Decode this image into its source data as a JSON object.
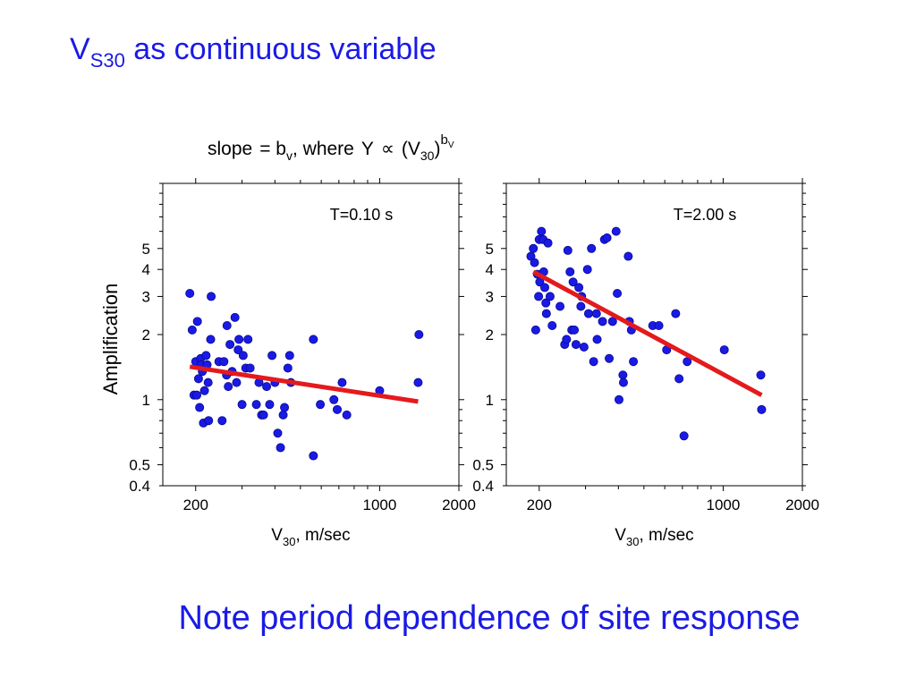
{
  "slide": {
    "title_main": "V",
    "title_sub": "S30",
    "title_rest": " as continuous variable",
    "caption": "Note period dependence of site response",
    "accent_color": "#1a1ae6"
  },
  "figure": {
    "slope_label": "slope",
    "equals": "= b",
    "b_sub": "v",
    "where": ", where",
    "Y": "Y",
    "propto": "∝",
    "V_open": "(V",
    "V_sub": "30",
    "close": ")",
    "exp_b": "b",
    "exp_sub": "V",
    "point_color": "#1a1ae6",
    "fit_color": "#e41a1c"
  },
  "chart_data": [
    {
      "type": "scatter",
      "title": "T=0.10 s",
      "xlabel_main": "V",
      "xlabel_sub": "30",
      "xlabel_rest": ", m/sec",
      "ylabel": "Amplification",
      "xlim": [
        150,
        2000
      ],
      "ylim": [
        0.4,
        10
      ],
      "xscale": "log",
      "yscale": "log",
      "x_tick_labels": [
        "200",
        "1000",
        "2000"
      ],
      "y_tick_labels": [
        "0.4",
        "0.5",
        "1",
        "2",
        "3",
        "4",
        "5"
      ],
      "points": [
        [
          190,
          3.1
        ],
        [
          194,
          2.1
        ],
        [
          197,
          1.05
        ],
        [
          200,
          1.5
        ],
        [
          202,
          1.05
        ],
        [
          203,
          2.3
        ],
        [
          205,
          1.25
        ],
        [
          207,
          0.92
        ],
        [
          209,
          1.55
        ],
        [
          210,
          1.45
        ],
        [
          212,
          1.35
        ],
        [
          214,
          0.78
        ],
        [
          216,
          1.1
        ],
        [
          219,
          1.6
        ],
        [
          221,
          1.45
        ],
        [
          223,
          1.2
        ],
        [
          224,
          0.8
        ],
        [
          228,
          1.9
        ],
        [
          229,
          3.0
        ],
        [
          245,
          1.5
        ],
        [
          252,
          0.8
        ],
        [
          256,
          1.5
        ],
        [
          262,
          1.3
        ],
        [
          263,
          2.2
        ],
        [
          266,
          1.15
        ],
        [
          270,
          1.8
        ],
        [
          275,
          1.35
        ],
        [
          282,
          2.4
        ],
        [
          286,
          1.2
        ],
        [
          290,
          1.7
        ],
        [
          292,
          1.9
        ],
        [
          300,
          0.95
        ],
        [
          303,
          1.6
        ],
        [
          310,
          1.4
        ],
        [
          316,
          1.9
        ],
        [
          322,
          1.4
        ],
        [
          340,
          0.95
        ],
        [
          348,
          1.2
        ],
        [
          356,
          0.85
        ],
        [
          362,
          0.85
        ],
        [
          372,
          1.15
        ],
        [
          382,
          0.95
        ],
        [
          390,
          1.6
        ],
        [
          400,
          1.2
        ],
        [
          410,
          0.7
        ],
        [
          420,
          0.6
        ],
        [
          430,
          0.85
        ],
        [
          435,
          0.92
        ],
        [
          448,
          1.4
        ],
        [
          455,
          1.6
        ],
        [
          460,
          1.2
        ],
        [
          560,
          0.55
        ],
        [
          560,
          1.9
        ],
        [
          595,
          0.95
        ],
        [
          670,
          1.0
        ],
        [
          690,
          0.9
        ],
        [
          720,
          1.2
        ],
        [
          750,
          0.85
        ],
        [
          1000,
          1.1
        ],
        [
          1400,
          1.2
        ],
        [
          1410,
          2.0
        ]
      ],
      "fit_line": [
        [
          190,
          1.42
        ],
        [
          1400,
          0.98
        ]
      ]
    },
    {
      "type": "scatter",
      "title": "T=2.00 s",
      "xlabel_main": "V",
      "xlabel_sub": "30",
      "xlabel_rest": ", m/sec",
      "ylabel": "",
      "xlim": [
        150,
        2000
      ],
      "ylim": [
        0.4,
        10
      ],
      "xscale": "log",
      "yscale": "log",
      "x_tick_labels": [
        "200",
        "1000",
        "2000"
      ],
      "y_tick_labels": [
        "0.4",
        "0.5",
        "1",
        "2",
        "3",
        "4",
        "5"
      ],
      "points": [
        [
          186,
          4.6
        ],
        [
          190,
          5.0
        ],
        [
          192,
          4.3
        ],
        [
          194,
          2.1
        ],
        [
          197,
          3.8
        ],
        [
          199,
          3.0
        ],
        [
          200,
          5.5
        ],
        [
          201,
          3.5
        ],
        [
          204,
          6.0
        ],
        [
          207,
          5.5
        ],
        [
          208,
          3.9
        ],
        [
          210,
          3.3
        ],
        [
          212,
          2.8
        ],
        [
          213,
          2.5
        ],
        [
          216,
          5.3
        ],
        [
          220,
          3.0
        ],
        [
          224,
          2.2
        ],
        [
          240,
          2.7
        ],
        [
          250,
          1.8
        ],
        [
          254,
          1.9
        ],
        [
          257,
          4.9
        ],
        [
          262,
          3.9
        ],
        [
          266,
          2.1
        ],
        [
          269,
          3.5
        ],
        [
          272,
          2.1
        ],
        [
          276,
          1.8
        ],
        [
          283,
          3.3
        ],
        [
          288,
          2.7
        ],
        [
          290,
          3.0
        ],
        [
          296,
          1.75
        ],
        [
          305,
          4.0
        ],
        [
          308,
          2.5
        ],
        [
          316,
          5.0
        ],
        [
          322,
          1.5
        ],
        [
          330,
          2.5
        ],
        [
          332,
          1.9
        ],
        [
          348,
          2.3
        ],
        [
          354,
          5.5
        ],
        [
          362,
          5.6
        ],
        [
          369,
          1.55
        ],
        [
          380,
          2.3
        ],
        [
          392,
          6.0
        ],
        [
          396,
          3.1
        ],
        [
          402,
          1.0
        ],
        [
          416,
          1.3
        ],
        [
          418,
          1.2
        ],
        [
          436,
          4.6
        ],
        [
          440,
          2.3
        ],
        [
          448,
          2.1
        ],
        [
          456,
          1.5
        ],
        [
          540,
          2.2
        ],
        [
          570,
          2.2
        ],
        [
          610,
          1.7
        ],
        [
          660,
          2.5
        ],
        [
          680,
          1.25
        ],
        [
          710,
          0.68
        ],
        [
          730,
          1.5
        ],
        [
          1010,
          1.7
        ],
        [
          1390,
          1.3
        ],
        [
          1400,
          0.9
        ]
      ],
      "fit_line": [
        [
          190,
          3.9
        ],
        [
          1400,
          1.05
        ]
      ]
    }
  ]
}
